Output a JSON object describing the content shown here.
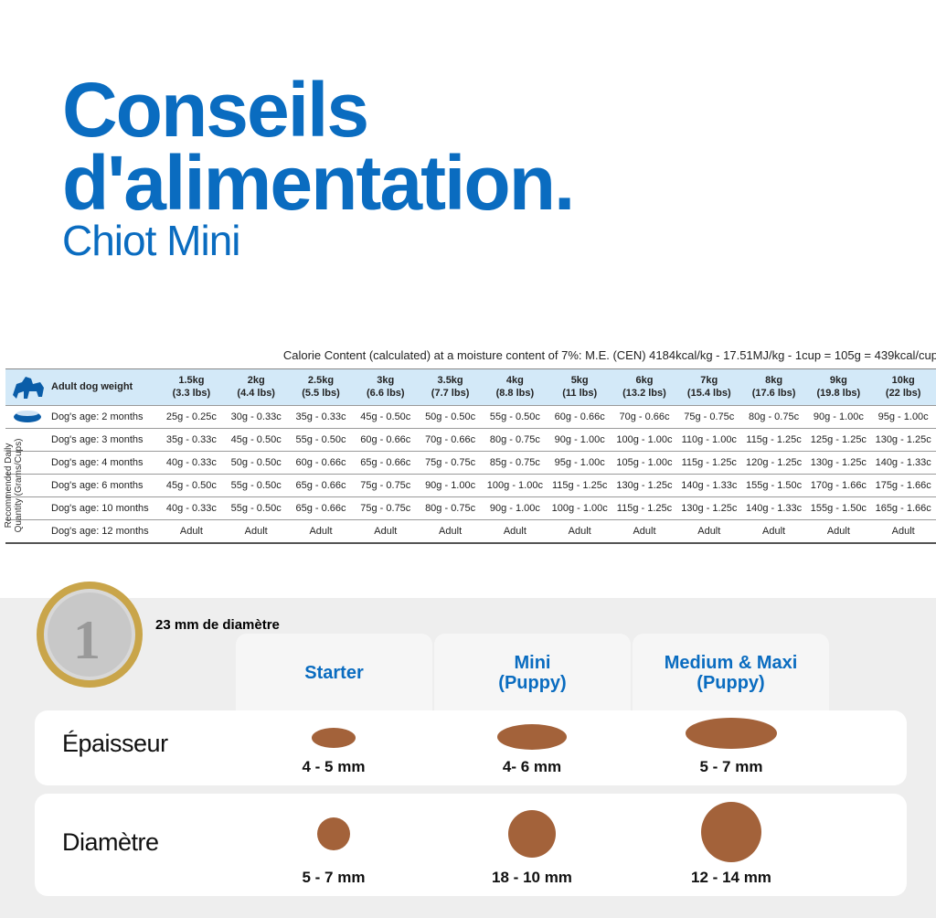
{
  "header": {
    "title_line1": "Conseils",
    "title_line2": "d'alimentation.",
    "subtitle": "Chiot Mini"
  },
  "table": {
    "caption": "Calorie Content (calculated) at a moisture content of 7%: M.E. (CEN) 4184kcal/kg - 17.51MJ/kg - 1cup = 105g = 439kcal/cup",
    "header_label": "Adult dog weight",
    "side_label": "Recommended Daily Quantity (Grams/Cups)",
    "columns": [
      {
        "kg": "1.5kg",
        "lbs": "(3.3 lbs)"
      },
      {
        "kg": "2kg",
        "lbs": "(4.4 lbs)"
      },
      {
        "kg": "2.5kg",
        "lbs": "(5.5 lbs)"
      },
      {
        "kg": "3kg",
        "lbs": "(6.6 lbs)"
      },
      {
        "kg": "3.5kg",
        "lbs": "(7.7 lbs)"
      },
      {
        "kg": "4kg",
        "lbs": "(8.8 lbs)"
      },
      {
        "kg": "5kg",
        "lbs": "(11 lbs)"
      },
      {
        "kg": "6kg",
        "lbs": "(13.2 lbs)"
      },
      {
        "kg": "7kg",
        "lbs": "(15.4 lbs)"
      },
      {
        "kg": "8kg",
        "lbs": "(17.6 lbs)"
      },
      {
        "kg": "9kg",
        "lbs": "(19.8 lbs)"
      },
      {
        "kg": "10kg",
        "lbs": "(22 lbs)"
      }
    ],
    "rows": [
      {
        "label": "Dog's age: 2 months",
        "cells": [
          "25g - 0.25c",
          "30g - 0.33c",
          "35g - 0.33c",
          "45g - 0.50c",
          "50g - 0.50c",
          "55g - 0.50c",
          "60g - 0.66c",
          "70g - 0.66c",
          "75g - 0.75c",
          "80g - 0.75c",
          "90g - 1.00c",
          "95g - 1.00c"
        ]
      },
      {
        "label": "Dog's age: 3 months",
        "cells": [
          "35g - 0.33c",
          "45g - 0.50c",
          "55g - 0.50c",
          "60g - 0.66c",
          "70g - 0.66c",
          "80g - 0.75c",
          "90g - 1.00c",
          "100g - 1.00c",
          "110g - 1.00c",
          "115g - 1.25c",
          "125g - 1.25c",
          "130g - 1.25c"
        ]
      },
      {
        "label": "Dog's age: 4 months",
        "cells": [
          "40g - 0.33c",
          "50g - 0.50c",
          "60g - 0.66c",
          "65g - 0.66c",
          "75g - 0.75c",
          "85g - 0.75c",
          "95g - 1.00c",
          "105g - 1.00c",
          "115g - 1.25c",
          "120g - 1.25c",
          "130g - 1.25c",
          "140g - 1.33c"
        ]
      },
      {
        "label": "Dog's age: 6 months",
        "cells": [
          "45g - 0.50c",
          "55g - 0.50c",
          "65g - 0.66c",
          "75g - 0.75c",
          "90g - 1.00c",
          "100g - 1.00c",
          "115g - 1.25c",
          "130g - 1.25c",
          "140g - 1.33c",
          "155g - 1.50c",
          "170g - 1.66c",
          "175g - 1.66c"
        ]
      },
      {
        "label": "Dog's age: 10 months",
        "cells": [
          "40g - 0.33c",
          "55g - 0.50c",
          "65g - 0.66c",
          "75g - 0.75c",
          "80g - 0.75c",
          "90g - 1.00c",
          "100g - 1.00c",
          "115g - 1.25c",
          "130g - 1.25c",
          "140g - 1.33c",
          "155g - 1.50c",
          "165g - 1.66c"
        ]
      },
      {
        "label": "Dog's age: 12 months",
        "cells": [
          "Adult",
          "Adult",
          "Adult",
          "Adult",
          "Adult",
          "Adult",
          "Adult",
          "Adult",
          "Adult",
          "Adult",
          "Adult",
          "Adult"
        ]
      }
    ]
  },
  "kibbles": {
    "coin_label": "23 mm de diamètre",
    "sizes": [
      {
        "name": "Starter"
      },
      {
        "name": "Mini",
        "sub": "(Puppy)"
      },
      {
        "name": "Medium & Maxi",
        "sub": "(Puppy)"
      }
    ],
    "rows": [
      {
        "label": "Épaisseur",
        "values": [
          "4 - 5 mm",
          "4- 6 mm",
          "5 - 7 mm"
        ]
      },
      {
        "label": "Diamètre",
        "values": [
          "5 - 7 mm",
          "18 - 10 mm",
          "12  - 14 mm"
        ]
      }
    ]
  }
}
